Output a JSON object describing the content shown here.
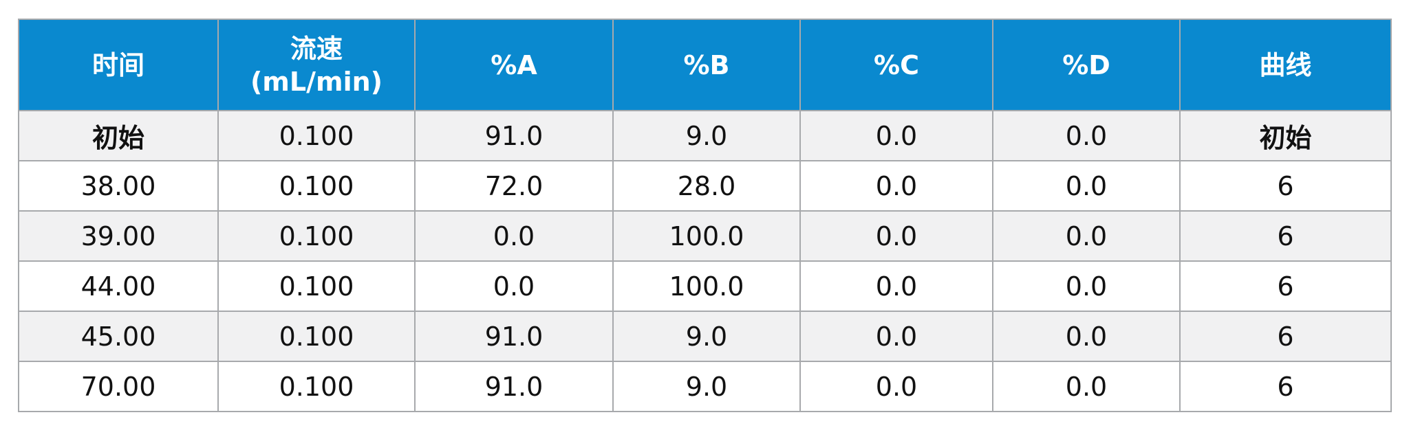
{
  "table": {
    "headers": [
      {
        "lines": [
          "时间"
        ]
      },
      {
        "lines": [
          "流速",
          "(mL/min)"
        ]
      },
      {
        "lines": [
          "%A"
        ]
      },
      {
        "lines": [
          "%B"
        ]
      },
      {
        "lines": [
          "%C"
        ]
      },
      {
        "lines": [
          "%D"
        ]
      },
      {
        "lines": [
          "曲线"
        ]
      }
    ],
    "rows": [
      [
        "初始",
        "0.100",
        "91.0",
        "9.0",
        "0.0",
        "0.0",
        "初始"
      ],
      [
        "38.00",
        "0.100",
        "72.0",
        "28.0",
        "0.0",
        "0.0",
        "6"
      ],
      [
        "39.00",
        "0.100",
        "0.0",
        "100.0",
        "0.0",
        "0.0",
        "6"
      ],
      [
        "44.00",
        "0.100",
        "0.0",
        "100.0",
        "0.0",
        "0.0",
        "6"
      ],
      [
        "45.00",
        "0.100",
        "91.0",
        "9.0",
        "0.0",
        "0.0",
        "6"
      ],
      [
        "70.00",
        "0.100",
        "91.0",
        "9.0",
        "0.0",
        "0.0",
        "6"
      ]
    ],
    "header_bg": "#0A89CF",
    "stripe_bg": "#F1F1F2",
    "border_color": "#A7A9AC"
  }
}
